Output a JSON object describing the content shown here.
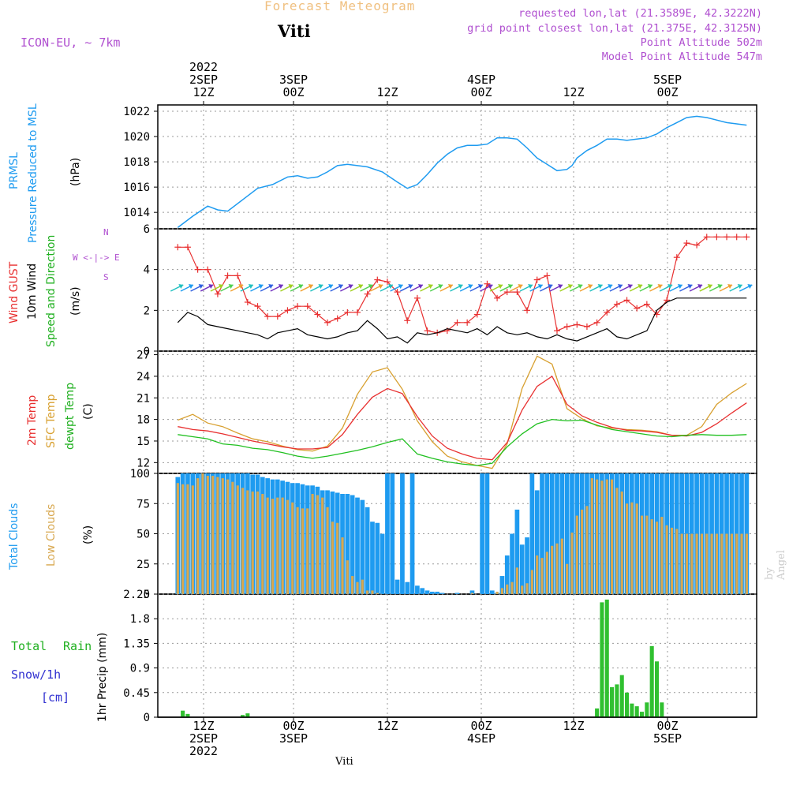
{
  "header": {
    "title": "Forecast Meteogram",
    "location": "Viti",
    "model": "ICON-EU, ~ 7km",
    "requested": "requested lon,lat (21.3589E, 42.3222N)",
    "grid_point": "grid point closest lon,lat (21.375E, 42.3125N)",
    "point_altitude": "Point Altitude 502m",
    "model_altitude": "Model Point Altitude 547m"
  },
  "time_axis": {
    "top_labels": [
      {
        "l1": "2022",
        "l2": "2SEP",
        "l3": "12Z"
      },
      {
        "l1": "",
        "l2": "3SEP",
        "l3": "00Z"
      },
      {
        "l1": "",
        "l2": "",
        "l3": "12Z"
      },
      {
        "l1": "",
        "l2": "4SEP",
        "l3": "00Z"
      },
      {
        "l1": "",
        "l2": "",
        "l3": "12Z"
      },
      {
        "l1": "",
        "l2": "5SEP",
        "l3": "00Z"
      }
    ],
    "bottom_labels": [
      {
        "l1": "12Z",
        "l2": "2SEP",
        "l3": "2022"
      },
      {
        "l1": "00Z",
        "l2": "3SEP",
        "l3": ""
      },
      {
        "l1": "12Z",
        "l2": "",
        "l3": ""
      },
      {
        "l1": "00Z",
        "l2": "4SEP",
        "l3": ""
      },
      {
        "l1": "12Z",
        "l2": "",
        "l3": ""
      },
      {
        "l1": "00Z",
        "l2": "5SEP",
        "l3": ""
      }
    ]
  },
  "panel_labels": {
    "pressure": {
      "l1": "PRMSL",
      "l2": "Pressure Reduced to MSL",
      "unit": "(hPa)"
    },
    "wind": {
      "gust": "Wind GUST",
      "wind10": "10m Wind",
      "dir": "Speed and Direction",
      "unit": "(m/s)",
      "compass_n": "N",
      "compass_s": "S",
      "compass_we": "W <-|-> E"
    },
    "temp": {
      "t2m": "2m Temp",
      "sfc": "SFC Temp",
      "dew": "dewpt Temp",
      "unit": "(C)"
    },
    "clouds": {
      "total": "Total Clouds",
      "low": "Low Clouds",
      "unit": "(%)"
    },
    "precip": {
      "axis": "1hr Precip (mm)",
      "total": "Total",
      "rain": "Rain",
      "snow": "Snow/1h",
      "cm": "[cm]"
    }
  },
  "watermark": "by Angel",
  "footer_location": "Viti",
  "colors": {
    "pressure": "#1e9bf0",
    "gust": "#e83030",
    "wind": "#000000",
    "t2m": "#e83030",
    "sfc": "#d8a030",
    "dew": "#20c020",
    "total_clouds": "#1e9bf0",
    "low_clouds": "#d8a850",
    "rain": "#30c030"
  },
  "chart_data": [
    {
      "type": "line",
      "title": "PRMSL Pressure Reduced to MSL",
      "ylabel": "(hPa)",
      "ylim": [
        1012.7,
        1022.5
      ],
      "yticks": [
        1014,
        1016,
        1018,
        1020,
        1022
      ],
      "x_hours": [
        0,
        3,
        6,
        8,
        10,
        13,
        16,
        19,
        22,
        24,
        26,
        28,
        30,
        32,
        34,
        36,
        38,
        41,
        44,
        46,
        48,
        50,
        52,
        54,
        56,
        58,
        60,
        62,
        64,
        66,
        68,
        70,
        72,
        74,
        76,
        78,
        79,
        80,
        82,
        84,
        86,
        88,
        90,
        92,
        94,
        96,
        98,
        100,
        102,
        104,
        106,
        108,
        110,
        112,
        114
      ],
      "series": [
        {
          "name": "PRMSL",
          "values": [
            1012.8,
            1013.7,
            1014.5,
            1014.2,
            1014.1,
            1015.0,
            1015.9,
            1016.2,
            1016.8,
            1016.9,
            1016.7,
            1016.8,
            1017.2,
            1017.7,
            1017.8,
            1017.7,
            1017.6,
            1017.2,
            1016.4,
            1015.9,
            1016.2,
            1017.0,
            1017.9,
            1018.6,
            1019.1,
            1019.3,
            1019.3,
            1019.4,
            1019.9,
            1019.9,
            1019.8,
            1019.1,
            1018.3,
            1017.8,
            1017.3,
            1017.4,
            1017.7,
            1018.3,
            1018.9,
            1019.3,
            1019.8,
            1019.8,
            1019.7,
            1019.8,
            1019.9,
            1020.2,
            1020.7,
            1021.1,
            1021.5,
            1021.6,
            1021.5,
            1021.3,
            1021.1,
            1021.0,
            1020.9
          ]
        }
      ]
    },
    {
      "type": "line",
      "title": "Wind GUST / 10m Wind Speed and Direction",
      "ylabel": "(m/s)",
      "ylim": [
        0,
        6
      ],
      "yticks": [
        0,
        2,
        4,
        6
      ],
      "x_hours": [
        0,
        2,
        4,
        6,
        8,
        10,
        12,
        14,
        16,
        18,
        20,
        22,
        24,
        26,
        28,
        30,
        32,
        34,
        36,
        38,
        40,
        42,
        44,
        46,
        48,
        50,
        52,
        54,
        56,
        58,
        60,
        62,
        64,
        66,
        68,
        70,
        72,
        74,
        76,
        78,
        80,
        82,
        84,
        86,
        88,
        90,
        92,
        94,
        96,
        98,
        100,
        102,
        104,
        106,
        108,
        110,
        112,
        114
      ],
      "series": [
        {
          "name": "Wind GUST",
          "values": [
            5.1,
            5.1,
            4.0,
            4.0,
            2.8,
            3.7,
            3.7,
            2.4,
            2.2,
            1.7,
            1.7,
            2.0,
            2.2,
            2.2,
            1.8,
            1.4,
            1.6,
            1.9,
            1.9,
            2.8,
            3.5,
            3.4,
            2.9,
            1.5,
            2.6,
            1.0,
            0.9,
            1.0,
            1.4,
            1.4,
            1.8,
            3.3,
            2.6,
            2.9,
            2.9,
            2.0,
            3.5,
            3.7,
            1.0,
            1.2,
            1.3,
            1.2,
            1.4,
            1.9,
            2.3,
            2.5,
            2.1,
            2.3,
            1.8,
            2.5,
            4.6,
            5.3,
            5.2,
            5.6,
            5.6,
            5.6,
            5.6,
            5.6
          ]
        },
        {
          "name": "10m Wind",
          "values": [
            1.4,
            1.9,
            1.7,
            1.3,
            1.2,
            1.1,
            1.0,
            0.9,
            0.8,
            0.6,
            0.9,
            1.0,
            1.1,
            0.8,
            0.7,
            0.6,
            0.7,
            0.9,
            1.0,
            1.5,
            1.1,
            0.6,
            0.7,
            0.4,
            0.9,
            0.8,
            0.9,
            1.1,
            1.0,
            0.9,
            1.1,
            0.8,
            1.2,
            0.9,
            0.8,
            0.9,
            0.7,
            0.6,
            0.8,
            0.6,
            0.5,
            0.7,
            0.9,
            1.1,
            0.7,
            0.6,
            0.8,
            1.0,
            2.0,
            2.4,
            2.6,
            2.6,
            2.6,
            2.6,
            2.6,
            2.6,
            2.6,
            2.6
          ]
        }
      ]
    },
    {
      "type": "line",
      "title": "2m Temp / SFC Temp / dewpt Temp",
      "ylabel": "(C)",
      "ylim": [
        10.5,
        27.5
      ],
      "yticks": [
        12,
        15,
        18,
        21,
        24,
        27
      ],
      "x_hours": [
        0,
        3,
        6,
        9,
        12,
        15,
        18,
        21,
        24,
        27,
        30,
        33,
        36,
        39,
        42,
        45,
        48,
        51,
        54,
        57,
        60,
        63,
        66,
        69,
        72,
        75,
        78,
        81,
        84,
        87,
        90,
        93,
        96,
        99,
        102,
        105,
        108,
        111,
        114
      ],
      "series": [
        {
          "name": "2m Temp",
          "values": [
            17.0,
            16.6,
            16.4,
            16.0,
            15.5,
            15.0,
            14.6,
            14.2,
            13.9,
            13.9,
            14.1,
            15.9,
            18.7,
            21.1,
            22.3,
            21.6,
            18.4,
            15.7,
            14.0,
            13.2,
            12.6,
            12.4,
            14.8,
            19.3,
            22.6,
            24.0,
            20.1,
            18.5,
            17.6,
            16.9,
            16.5,
            16.4,
            16.2,
            15.8,
            15.7,
            16.2,
            17.4,
            18.9,
            20.3
          ]
        },
        {
          "name": "SFC Temp",
          "values": [
            17.9,
            18.7,
            17.5,
            17.0,
            16.1,
            15.3,
            14.9,
            14.3,
            13.8,
            13.6,
            14.3,
            16.8,
            21.5,
            24.6,
            25.2,
            22.2,
            17.8,
            14.9,
            12.9,
            12.1,
            11.6,
            11.2,
            14.6,
            22.3,
            26.8,
            25.7,
            19.5,
            18.1,
            17.1,
            16.8,
            16.6,
            16.5,
            16.3,
            15.8,
            15.8,
            17.0,
            20.1,
            21.7,
            23.0
          ]
        },
        {
          "name": "dewpt Temp",
          "values": [
            15.9,
            15.6,
            15.3,
            14.6,
            14.4,
            14.0,
            13.8,
            13.4,
            12.9,
            12.6,
            12.9,
            13.3,
            13.7,
            14.2,
            14.8,
            15.3,
            13.2,
            12.6,
            12.1,
            11.8,
            11.6,
            11.9,
            14.2,
            16.0,
            17.4,
            18.0,
            17.8,
            17.9,
            17.2,
            16.6,
            16.3,
            16.0,
            15.7,
            15.6,
            15.8,
            15.9,
            15.8,
            15.8,
            15.9
          ]
        }
      ]
    },
    {
      "type": "bar",
      "title": "Total Clouds / Low Clouds",
      "ylabel": "(%)",
      "ylim": [
        0,
        100
      ],
      "yticks": [
        0,
        25,
        50,
        75,
        100
      ],
      "x_hours": [
        0,
        1,
        2,
        3,
        4,
        5,
        6,
        7,
        8,
        9,
        10,
        11,
        12,
        13,
        14,
        15,
        16,
        17,
        18,
        19,
        20,
        21,
        22,
        23,
        24,
        25,
        26,
        27,
        28,
        29,
        30,
        31,
        32,
        33,
        34,
        35,
        36,
        37,
        38,
        39,
        40,
        41,
        42,
        43,
        44,
        45,
        46,
        47,
        48,
        49,
        50,
        51,
        52,
        53,
        54,
        55,
        56,
        57,
        58,
        59,
        60,
        61,
        62,
        63,
        64,
        65,
        66,
        67,
        68,
        69,
        70,
        71,
        72,
        73,
        74,
        75,
        76,
        77,
        78,
        79,
        80,
        81,
        82,
        83,
        84,
        85,
        86,
        87,
        88,
        89,
        90,
        91,
        92,
        93,
        94,
        95,
        96,
        97,
        98,
        99,
        100,
        101,
        102,
        103,
        104,
        105,
        106,
        107,
        108,
        109,
        110,
        111,
        112,
        113,
        114
      ],
      "series": [
        {
          "name": "Total Clouds",
          "values": [
            97,
            100,
            100,
            100,
            100,
            100,
            100,
            100,
            100,
            100,
            100,
            100,
            100,
            100,
            100,
            99,
            99,
            97,
            96,
            95,
            95,
            94,
            93,
            92,
            92,
            91,
            90,
            90,
            89,
            86,
            86,
            85,
            84,
            83,
            83,
            82,
            80,
            78,
            72,
            60,
            59,
            50,
            100,
            100,
            12,
            100,
            10,
            100,
            7,
            5,
            3,
            2,
            2,
            1,
            0,
            0,
            1,
            0,
            0,
            3,
            0,
            100,
            100,
            3,
            1,
            15,
            32,
            50,
            70,
            41,
            47,
            100,
            86,
            100,
            100,
            100,
            100,
            100,
            100,
            100,
            100,
            100,
            100,
            100,
            100,
            100,
            100,
            100,
            100,
            100,
            100,
            100,
            100,
            100,
            100,
            100,
            100,
            100,
            100,
            100,
            100,
            100,
            100,
            100,
            100,
            100,
            100,
            100,
            100,
            100,
            100,
            100,
            100,
            100,
            100
          ]
        },
        {
          "name": "Low Clouds",
          "values": [
            92,
            91,
            91,
            90,
            96,
            100,
            98,
            98,
            97,
            96,
            95,
            93,
            90,
            88,
            86,
            85,
            85,
            83,
            80,
            79,
            80,
            80,
            78,
            76,
            72,
            71,
            71,
            83,
            82,
            80,
            72,
            60,
            59,
            47,
            28,
            15,
            10,
            12,
            3,
            3,
            1,
            0,
            0,
            0,
            0,
            0,
            0,
            0,
            0,
            0,
            0,
            0,
            0,
            0,
            0,
            0,
            0,
            0,
            0,
            1,
            0,
            0,
            0,
            0,
            2,
            5,
            8,
            10,
            22,
            7,
            9,
            20,
            32,
            30,
            35,
            40,
            42,
            46,
            25,
            51,
            65,
            70,
            73,
            96,
            95,
            94,
            95,
            95,
            88,
            85,
            75,
            76,
            75,
            65,
            65,
            62,
            60,
            64,
            57,
            55,
            54,
            50,
            50,
            50,
            50,
            50,
            50,
            50,
            50,
            50,
            50,
            50,
            50,
            50,
            50
          ]
        }
      ]
    },
    {
      "type": "bar",
      "title": "1hr Precip",
      "ylabel": "1hr Precip (mm)",
      "ylim": [
        0,
        2.25
      ],
      "yticks": [
        0,
        0.45,
        0.9,
        1.35,
        1.8,
        2.25
      ],
      "x_hours": [
        1,
        2,
        13,
        14,
        84,
        85,
        86,
        87,
        88,
        89,
        90,
        91,
        92,
        93,
        94,
        95,
        96,
        97,
        98
      ],
      "series": [
        {
          "name": "Total Rain",
          "values": [
            0.12,
            0.06,
            0.04,
            0.07,
            0.16,
            2.1,
            2.15,
            0.55,
            0.6,
            0.77,
            0.45,
            0.25,
            0.2,
            0.1,
            0.27,
            1.3,
            1.02,
            0.27,
            0.0
          ]
        }
      ]
    }
  ]
}
